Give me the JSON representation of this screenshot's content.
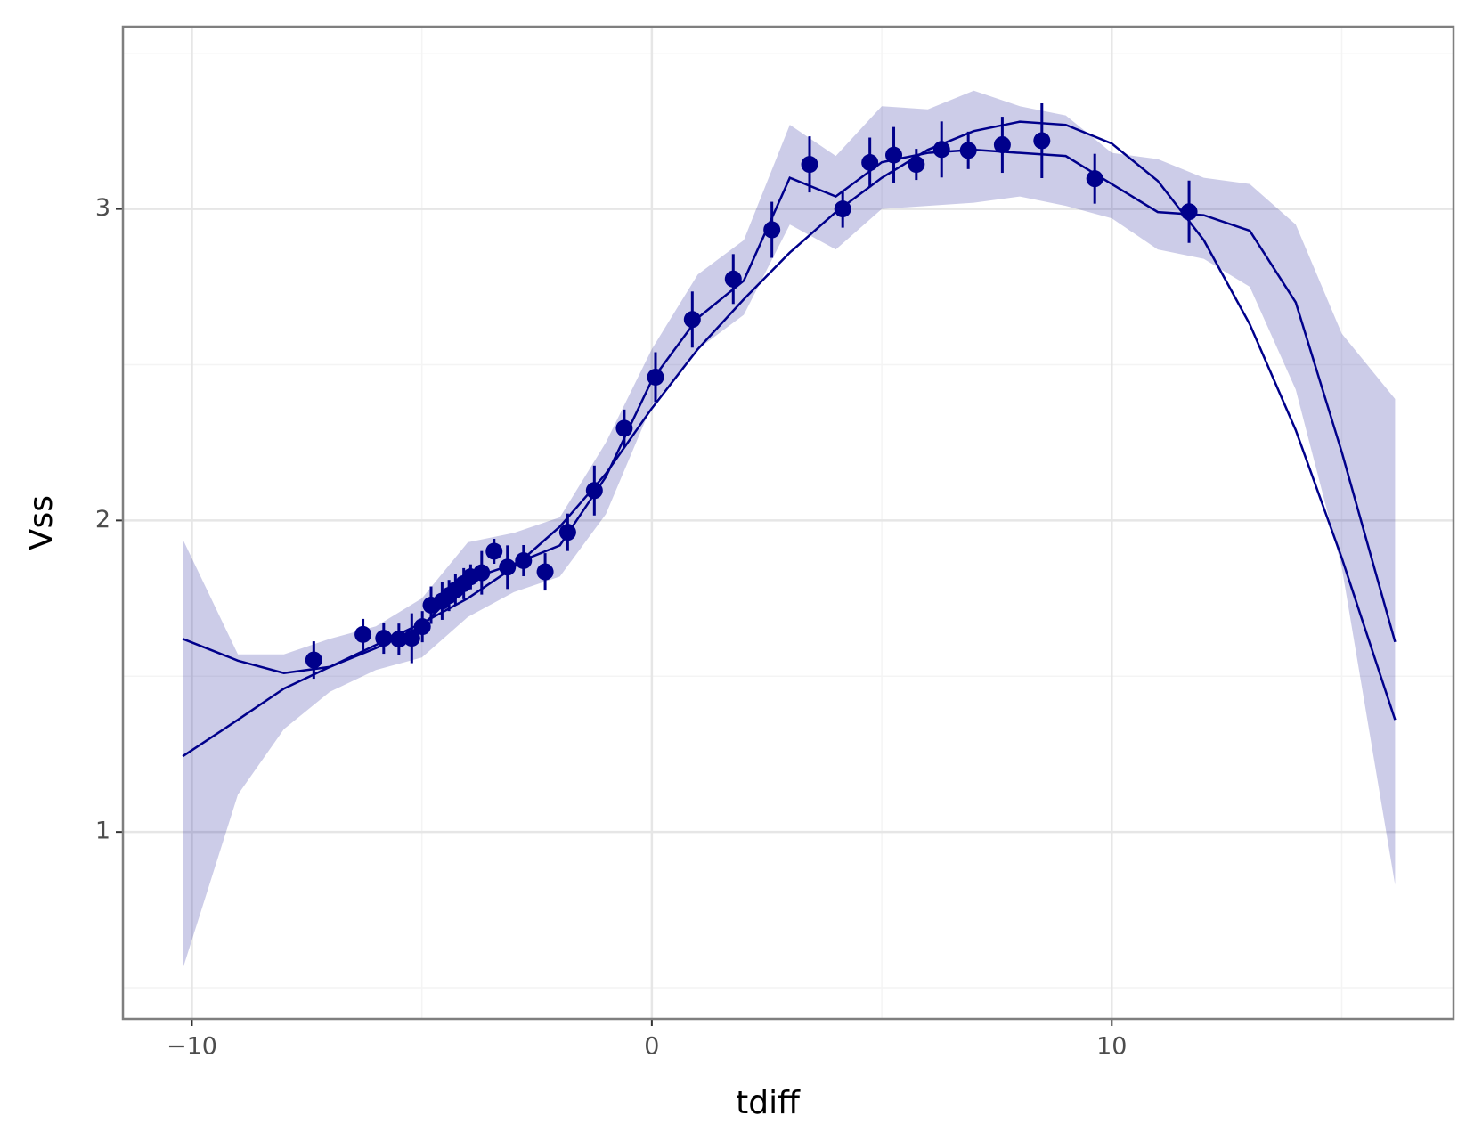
{
  "chart_data": {
    "type": "line",
    "x_label": "tdiff",
    "y_label": "Vss",
    "xlim": [
      -11.5,
      17.43
    ],
    "ylim": [
      0.4,
      3.585
    ],
    "xticks": [
      {
        "value": -10,
        "label": "−10"
      },
      0,
      10
    ],
    "yticks": [
      1,
      2,
      3
    ],
    "minor_xticks": [
      -5,
      5,
      15
    ],
    "minor_yticks": [
      0.5,
      1.5,
      2.5,
      3.5
    ],
    "grid": true,
    "color": "#00008b",
    "points": {
      "x": [
        -7.35,
        -6.28,
        -5.83,
        -5.5,
        -5.22,
        -4.99,
        -4.8,
        -4.56,
        -4.41,
        -4.27,
        -4.09,
        -3.94,
        -3.7,
        -3.43,
        -3.14,
        -2.79,
        -2.32,
        -1.83,
        -1.25,
        -0.6,
        0.08,
        0.88,
        1.77,
        2.61,
        3.43,
        4.15,
        4.74,
        5.26,
        5.75,
        6.3,
        6.88,
        7.62,
        8.48,
        9.63,
        11.68
      ],
      "values": [
        1.552,
        1.634,
        1.622,
        1.619,
        1.622,
        1.659,
        1.728,
        1.741,
        1.759,
        1.777,
        1.797,
        1.819,
        1.832,
        1.901,
        1.85,
        1.871,
        1.835,
        1.962,
        2.096,
        2.296,
        2.46,
        2.645,
        2.775,
        2.933,
        3.143,
        3.0,
        3.149,
        3.173,
        3.143,
        3.191,
        3.188,
        3.206,
        3.219,
        3.097,
        2.991
      ],
      "errors": [
        0.06,
        0.05,
        0.05,
        0.05,
        0.08,
        0.05,
        0.06,
        0.06,
        0.05,
        0.05,
        0.05,
        0.04,
        0.07,
        0.04,
        0.07,
        0.05,
        0.06,
        0.06,
        0.08,
        0.06,
        0.08,
        0.09,
        0.08,
        0.09,
        0.09,
        0.06,
        0.08,
        0.09,
        0.05,
        0.09,
        0.06,
        0.09,
        0.12,
        0.08,
        0.1
      ]
    },
    "series": [
      {
        "x": [
          -10.2,
          -9,
          -8,
          -7,
          -6,
          -5,
          -4,
          -3,
          -2,
          -1,
          0,
          1,
          2,
          3,
          4,
          5,
          6,
          7,
          8,
          9,
          10,
          11,
          12,
          13,
          14,
          15,
          16.16
        ],
        "values": [
          1.243,
          1.36,
          1.46,
          1.53,
          1.6,
          1.67,
          1.75,
          1.85,
          1.98,
          2.15,
          2.36,
          2.55,
          2.71,
          2.86,
          2.99,
          3.1,
          3.19,
          3.25,
          3.28,
          3.27,
          3.21,
          3.09,
          2.9,
          2.63,
          2.29,
          1.88,
          1.36
        ]
      },
      {
        "x": [
          -10.2,
          -9,
          -8,
          -7,
          -6,
          -5,
          -4,
          -3,
          -2,
          -1,
          0,
          1,
          2,
          3,
          4,
          5,
          6,
          7,
          8,
          9,
          10,
          11,
          12,
          13,
          14,
          15,
          16.16
        ],
        "values": [
          1.62,
          1.55,
          1.51,
          1.53,
          1.59,
          1.66,
          1.81,
          1.86,
          1.92,
          2.14,
          2.45,
          2.65,
          2.77,
          3.1,
          3.04,
          3.15,
          3.18,
          3.19,
          3.18,
          3.17,
          3.08,
          2.99,
          2.98,
          2.93,
          2.7,
          2.22,
          1.61
        ],
        "upper": [
          1.94,
          1.57,
          1.57,
          1.62,
          1.66,
          1.75,
          1.93,
          1.96,
          2.01,
          2.25,
          2.55,
          2.79,
          2.9,
          3.27,
          3.17,
          3.33,
          3.32,
          3.38,
          3.33,
          3.3,
          3.18,
          3.16,
          3.1,
          3.08,
          2.95,
          2.6,
          2.39
        ],
        "lower": [
          0.56,
          1.12,
          1.33,
          1.45,
          1.52,
          1.56,
          1.69,
          1.77,
          1.82,
          2.02,
          2.37,
          2.55,
          2.66,
          2.95,
          2.87,
          3.0,
          3.01,
          3.02,
          3.04,
          3.01,
          2.97,
          2.87,
          2.84,
          2.75,
          2.42,
          1.85,
          0.83
        ]
      }
    ]
  }
}
